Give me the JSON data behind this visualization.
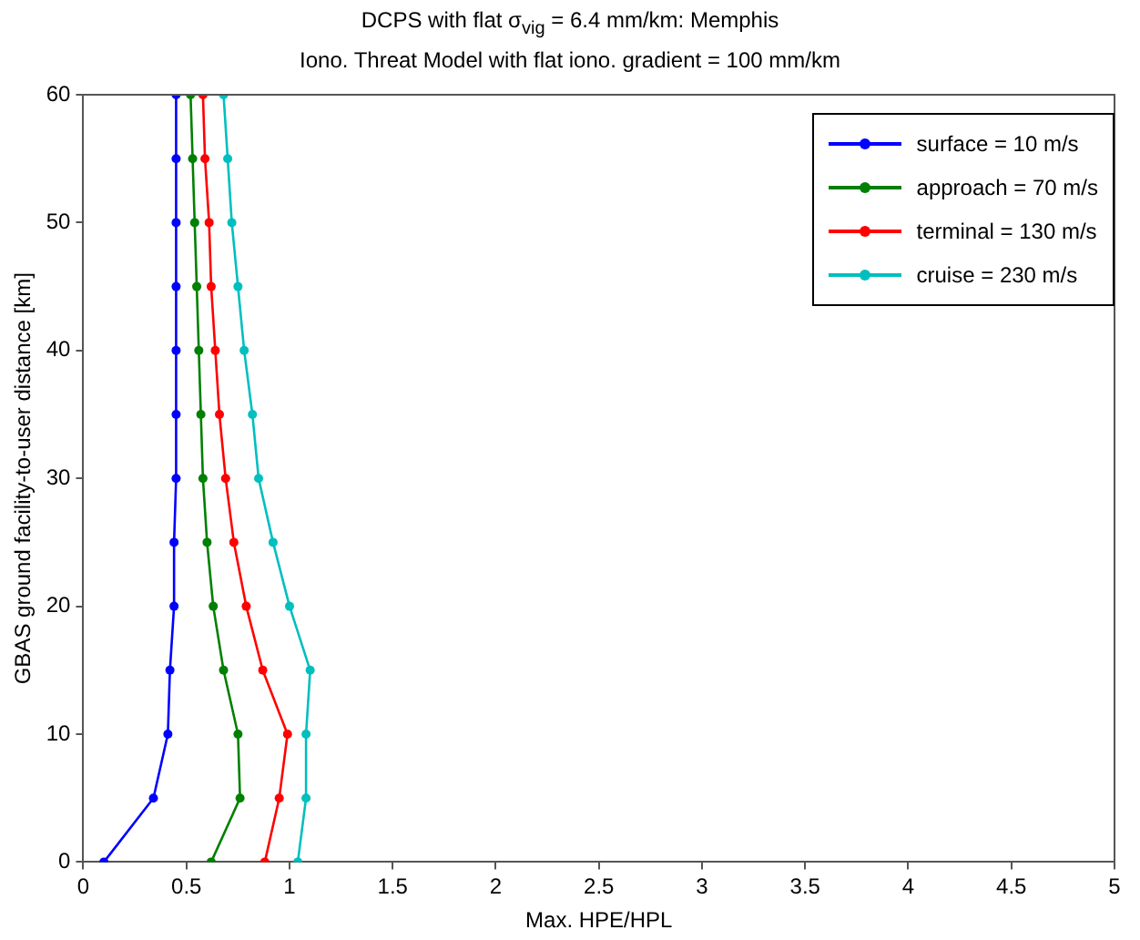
{
  "chart_data": {
    "type": "line",
    "title": "DCPS with flat σ$_{vig}$ = 6.4 mm/km: Memphis",
    "subtitle": "Iono. Threat Model with flat iono. gradient = 100 mm/km",
    "xlabel": "Max. HPE/HPL",
    "ylabel": "GBAS ground facility-to-user distance [km]",
    "xlim": [
      0,
      5
    ],
    "xticks": [
      0,
      0.5,
      1,
      1.5,
      2,
      2.5,
      3,
      3.5,
      4,
      4.5,
      5
    ],
    "ylim": [
      0,
      60
    ],
    "yticks": [
      0,
      10,
      20,
      30,
      40,
      50,
      60
    ],
    "grid": false,
    "legend": "top right",
    "marker": "circle",
    "line_style": "solid",
    "series": [
      {
        "name": "surface = 10 m/s",
        "color": "#0000ff",
        "x": [
          0.1,
          0.34,
          0.41,
          0.42,
          0.44,
          0.44,
          0.45,
          0.45,
          0.45,
          0.45,
          0.45,
          0.45,
          0.45
        ],
        "values": [
          0,
          5,
          10,
          15,
          20,
          25,
          30,
          35,
          40,
          45,
          50,
          55,
          60
        ]
      },
      {
        "name": "approach = 70 m/s",
        "color": "#008000",
        "x": [
          0.62,
          0.76,
          0.75,
          0.68,
          0.63,
          0.6,
          0.58,
          0.57,
          0.56,
          0.55,
          0.54,
          0.53,
          0.52
        ],
        "values": [
          0,
          5,
          10,
          15,
          20,
          25,
          30,
          35,
          40,
          45,
          50,
          55,
          60
        ]
      },
      {
        "name": "terminal = 130 m/s",
        "color": "#ff0000",
        "x": [
          0.88,
          0.95,
          0.99,
          0.87,
          0.79,
          0.73,
          0.69,
          0.66,
          0.64,
          0.62,
          0.61,
          0.59,
          0.58
        ],
        "values": [
          0,
          5,
          10,
          15,
          20,
          25,
          30,
          35,
          40,
          45,
          50,
          55,
          60
        ]
      },
      {
        "name": "cruise = 230 m/s",
        "color": "#00bfbf",
        "x": [
          1.04,
          1.08,
          1.08,
          1.1,
          1.0,
          0.92,
          0.85,
          0.82,
          0.78,
          0.75,
          0.72,
          0.7,
          0.68
        ],
        "values": [
          0,
          5,
          10,
          15,
          20,
          25,
          30,
          35,
          40,
          45,
          50,
          55,
          60
        ]
      }
    ]
  }
}
